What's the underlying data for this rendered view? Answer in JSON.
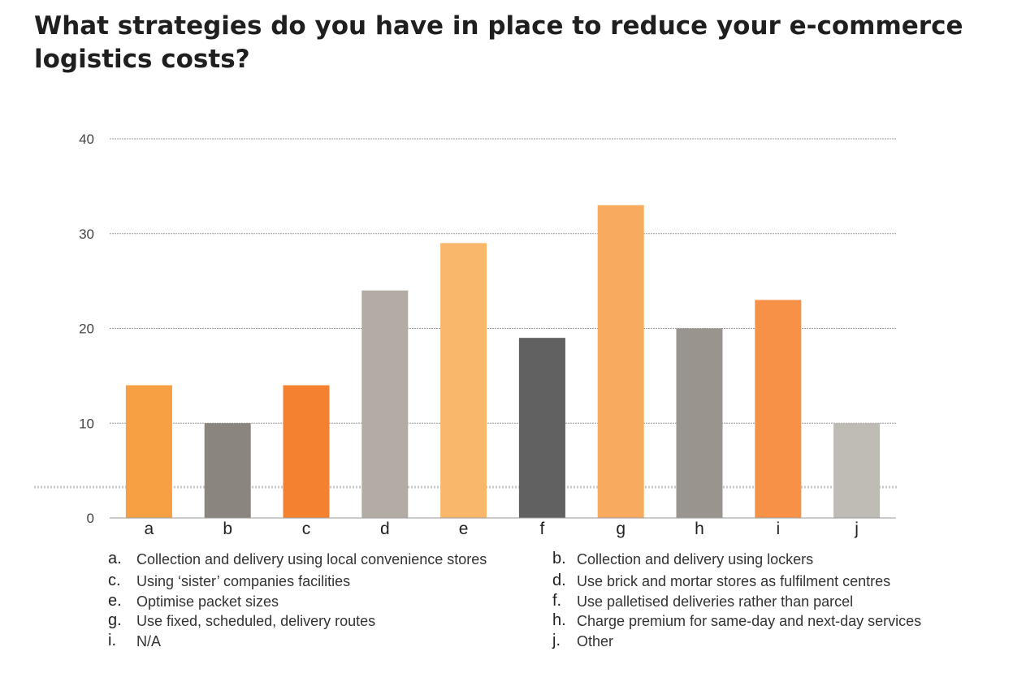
{
  "title": "What strategies do you have in place to reduce your e-commerce logistics costs?",
  "chart_data": {
    "type": "bar",
    "categories": [
      "a",
      "b",
      "c",
      "d",
      "e",
      "f",
      "g",
      "h",
      "i",
      "j"
    ],
    "values": [
      14,
      10,
      14,
      24,
      29,
      19,
      33,
      20,
      23,
      10
    ],
    "colors": [
      "#F6A043",
      "#8A867F",
      "#F4812F",
      "#B3ACA5",
      "#F9B76A",
      "#616161",
      "#F8AB5E",
      "#99958E",
      "#F69147",
      "#BFBBB5"
    ],
    "ylim": [
      0,
      40
    ],
    "yticks": [
      0,
      10,
      20,
      30,
      40
    ],
    "grid": true,
    "xlabel": "",
    "ylabel": ""
  },
  "legend": [
    {
      "key": "a.",
      "text": "Collection and delivery using local convenience stores"
    },
    {
      "key": "b.",
      "text": "Collection and delivery using lockers"
    },
    {
      "key": "c.",
      "text": "Using ‘sister’ companies facilities"
    },
    {
      "key": "d.",
      "text": "Use brick and mortar stores as fulfilment centres"
    },
    {
      "key": "e.",
      "text": "Optimise packet sizes"
    },
    {
      "key": "f.",
      "text": "Use palletised deliveries rather than parcel"
    },
    {
      "key": "g.",
      "text": "Use fixed, scheduled, delivery routes"
    },
    {
      "key": "h.",
      "text": "Charge premium for same-day and next-day services"
    },
    {
      "key": "i.",
      "text": "N/A"
    },
    {
      "key": "j.",
      "text": "Other"
    }
  ]
}
